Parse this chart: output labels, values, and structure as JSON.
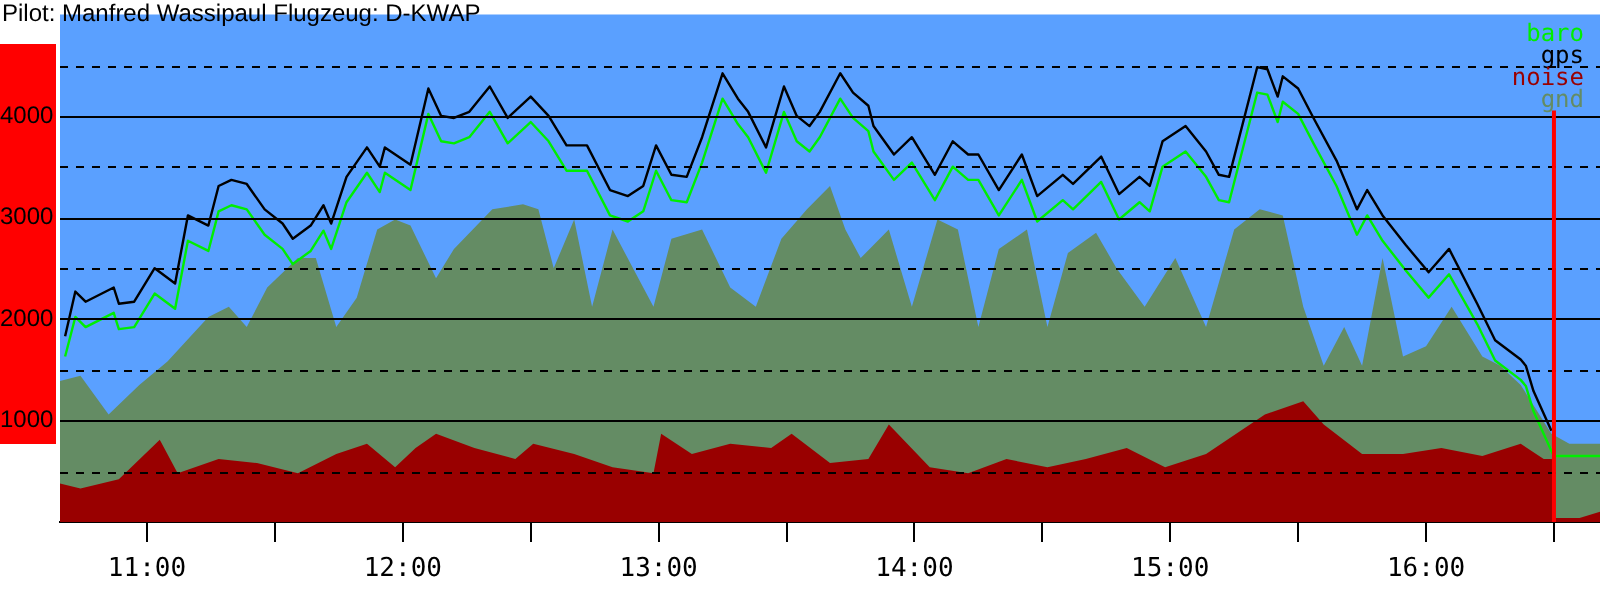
{
  "chart_data": {
    "type": "line",
    "title": "Pilot: Manfred Wassipaul Flugzeug: D-KWAP",
    "xlim": [
      10.66,
      16.68
    ],
    "xticks": [
      {
        "value": 11,
        "label": "11:00"
      },
      {
        "value": 11.5,
        "label": null
      },
      {
        "value": 12,
        "label": "12:00"
      },
      {
        "value": 12.5,
        "label": null
      },
      {
        "value": 13,
        "label": "13:00"
      },
      {
        "value": 13.5,
        "label": null
      },
      {
        "value": 14,
        "label": "14:00"
      },
      {
        "value": 14.5,
        "label": null
      },
      {
        "value": 15,
        "label": "15:00"
      },
      {
        "value": 15.5,
        "label": null
      },
      {
        "value": 16,
        "label": "16:00"
      },
      {
        "value": 16.5,
        "label": null
      }
    ],
    "ylim": [
      0,
      5000
    ],
    "yticks": [
      {
        "value": 500,
        "label": null
      },
      1000,
      {
        "value": 1500,
        "label": null
      },
      2000,
      {
        "value": 2500,
        "label": null
      },
      3000,
      {
        "value": 3500,
        "label": null
      },
      4000,
      {
        "value": 4500,
        "label": null
      }
    ],
    "grid": "y",
    "legend": "top right",
    "ref_lines": [
      {
        "axis": "x",
        "value": 16.5,
        "color": "#ff0000"
      }
    ],
    "series": [
      {
        "name": "baro",
        "type": "line",
        "color": "#00ee00",
        "x": [
          10.68,
          10.72,
          10.76,
          10.87,
          10.89,
          10.95,
          11.03,
          11.11,
          11.16,
          11.24,
          11.28,
          11.33,
          11.39,
          11.46,
          11.53,
          11.57,
          11.64,
          11.69,
          11.72,
          11.78,
          11.86,
          11.91,
          11.93,
          12.03,
          12.1,
          12.15,
          12.2,
          12.26,
          12.34,
          12.41,
          12.5,
          12.57,
          12.64,
          12.72,
          12.81,
          12.88,
          12.94,
          12.99,
          13.05,
          13.11,
          13.17,
          13.25,
          13.31,
          13.35,
          13.42,
          13.49,
          13.54,
          13.59,
          13.63,
          13.71,
          13.76,
          13.82,
          13.84,
          13.92,
          13.99,
          14.08,
          14.15,
          14.21,
          14.25,
          14.33,
          14.42,
          14.48,
          14.58,
          14.62,
          14.73,
          14.8,
          14.88,
          14.92,
          14.97,
          15.06,
          15.14,
          15.19,
          15.23,
          15.34,
          15.38,
          15.42,
          15.44,
          15.5,
          15.56,
          15.65,
          15.73,
          15.77,
          15.83,
          15.92,
          16.01,
          16.09,
          16.2,
          16.27,
          16.37,
          16.39,
          16.42,
          16.49,
          16.5,
          16.68
        ],
        "values": [
          1630,
          2020,
          1920,
          2060,
          1900,
          1920,
          2250,
          2100,
          2770,
          2670,
          3060,
          3120,
          3080,
          2830,
          2690,
          2540,
          2670,
          2870,
          2690,
          3150,
          3440,
          3250,
          3440,
          3270,
          4020,
          3750,
          3730,
          3790,
          4040,
          3730,
          3940,
          3750,
          3460,
          3460,
          3020,
          2960,
          3060,
          3460,
          3170,
          3150,
          3540,
          4170,
          3920,
          3790,
          3440,
          4040,
          3750,
          3650,
          3790,
          4170,
          3980,
          3850,
          3650,
          3370,
          3540,
          3170,
          3500,
          3370,
          3370,
          3020,
          3370,
          2960,
          3170,
          3080,
          3350,
          2980,
          3150,
          3060,
          3500,
          3650,
          3400,
          3170,
          3150,
          4230,
          4210,
          3940,
          4140,
          4020,
          3730,
          3310,
          2830,
          3020,
          2770,
          2480,
          2210,
          2440,
          1950,
          1590,
          1400,
          1340,
          1090,
          700,
          650,
          650
        ]
      },
      {
        "name": "gps",
        "type": "line",
        "color": "#000000",
        "x": [
          10.68,
          10.72,
          10.76,
          10.87,
          10.89,
          10.95,
          11.03,
          11.11,
          11.16,
          11.24,
          11.28,
          11.33,
          11.39,
          11.46,
          11.53,
          11.57,
          11.64,
          11.69,
          11.72,
          11.78,
          11.86,
          11.91,
          11.93,
          12.03,
          12.1,
          12.15,
          12.2,
          12.26,
          12.34,
          12.41,
          12.5,
          12.57,
          12.64,
          12.72,
          12.81,
          12.88,
          12.94,
          12.99,
          13.05,
          13.11,
          13.17,
          13.25,
          13.31,
          13.35,
          13.42,
          13.49,
          13.54,
          13.59,
          13.63,
          13.71,
          13.76,
          13.82,
          13.84,
          13.92,
          13.99,
          14.08,
          14.15,
          14.21,
          14.25,
          14.33,
          14.42,
          14.48,
          14.58,
          14.62,
          14.73,
          14.8,
          14.88,
          14.92,
          14.97,
          15.06,
          15.14,
          15.19,
          15.23,
          15.34,
          15.38,
          15.42,
          15.44,
          15.5,
          15.56,
          15.65,
          15.73,
          15.77,
          15.83,
          15.92,
          16.01,
          16.09,
          16.2,
          16.27,
          16.37,
          16.39,
          16.42,
          16.49
        ],
        "values": [
          1830,
          2270,
          2170,
          2310,
          2150,
          2170,
          2500,
          2350,
          3020,
          2920,
          3310,
          3370,
          3330,
          3080,
          2940,
          2790,
          2920,
          3120,
          2940,
          3400,
          3690,
          3500,
          3690,
          3520,
          4270,
          4000,
          3980,
          4040,
          4290,
          3980,
          4190,
          4000,
          3710,
          3710,
          3270,
          3210,
          3310,
          3710,
          3420,
          3400,
          3790,
          4420,
          4170,
          4040,
          3690,
          4290,
          4000,
          3900,
          4040,
          4420,
          4230,
          4100,
          3900,
          3620,
          3790,
          3420,
          3750,
          3620,
          3620,
          3270,
          3620,
          3210,
          3420,
          3330,
          3600,
          3230,
          3400,
          3310,
          3750,
          3900,
          3650,
          3420,
          3400,
          4480,
          4460,
          4190,
          4390,
          4270,
          3980,
          3560,
          3080,
          3270,
          3020,
          2730,
          2460,
          2690,
          2150,
          1790,
          1600,
          1540,
          1290,
          900
        ]
      },
      {
        "name": "noise",
        "type": "area",
        "color": "#990000",
        "x": [
          10.66,
          10.74,
          10.89,
          11.05,
          11.12,
          11.28,
          11.43,
          11.59,
          11.74,
          11.86,
          11.97,
          12.05,
          12.13,
          12.28,
          12.44,
          12.51,
          12.67,
          12.82,
          12.98,
          13.01,
          13.13,
          13.28,
          13.44,
          13.52,
          13.67,
          13.82,
          13.9,
          14.06,
          14.21,
          14.36,
          14.52,
          14.67,
          14.83,
          14.98,
          15.14,
          15.37,
          15.52,
          15.6,
          15.75,
          15.91,
          16.06,
          16.22,
          16.37,
          16.46,
          16.495,
          16.5,
          16.505,
          16.52,
          16.6,
          16.68
        ],
        "values": [
          380,
          330,
          420,
          810,
          480,
          620,
          580,
          480,
          670,
          770,
          540,
          730,
          870,
          730,
          620,
          770,
          670,
          540,
          480,
          870,
          670,
          770,
          730,
          870,
          580,
          620,
          960,
          540,
          480,
          620,
          540,
          620,
          730,
          540,
          670,
          1060,
          1190,
          960,
          670,
          670,
          730,
          650,
          770,
          620,
          620,
          2790,
          40,
          40,
          40,
          100
        ]
      },
      {
        "name": "gnd",
        "type": "area",
        "color": "#648c64",
        "x": [
          10.66,
          10.74,
          10.85,
          10.97,
          11.08,
          11.24,
          11.32,
          11.39,
          11.47,
          11.59,
          11.66,
          11.74,
          11.82,
          11.9,
          11.97,
          12.03,
          12.13,
          12.2,
          12.35,
          12.47,
          12.53,
          12.59,
          12.67,
          12.74,
          12.82,
          12.9,
          12.98,
          13.05,
          13.17,
          13.28,
          13.38,
          13.48,
          13.58,
          13.67,
          13.73,
          13.79,
          13.9,
          13.99,
          14.09,
          14.17,
          14.25,
          14.33,
          14.44,
          14.52,
          14.6,
          14.71,
          14.79,
          14.9,
          15.02,
          15.14,
          15.25,
          15.35,
          15.44,
          15.52,
          15.6,
          15.68,
          15.75,
          15.83,
          15.91,
          16.0,
          16.1,
          16.22,
          16.29,
          16.37,
          16.49,
          16.56,
          16.68
        ],
        "values": [
          1390,
          1440,
          1060,
          1350,
          1580,
          2020,
          2120,
          1920,
          2310,
          2600,
          2600,
          1920,
          2210,
          2880,
          2980,
          2920,
          2400,
          2690,
          3080,
          3130,
          3080,
          2500,
          2980,
          2120,
          2880,
          2500,
          2120,
          2790,
          2880,
          2310,
          2120,
          2790,
          3080,
          3310,
          2880,
          2600,
          2880,
          2120,
          2980,
          2880,
          1920,
          2690,
          2880,
          1920,
          2650,
          2850,
          2500,
          2120,
          2600,
          1920,
          2880,
          3080,
          3020,
          2120,
          1540,
          1920,
          1540,
          2600,
          1630,
          1730,
          2120,
          1630,
          1540,
          1350,
          870,
          770,
          770
        ]
      }
    ]
  }
}
